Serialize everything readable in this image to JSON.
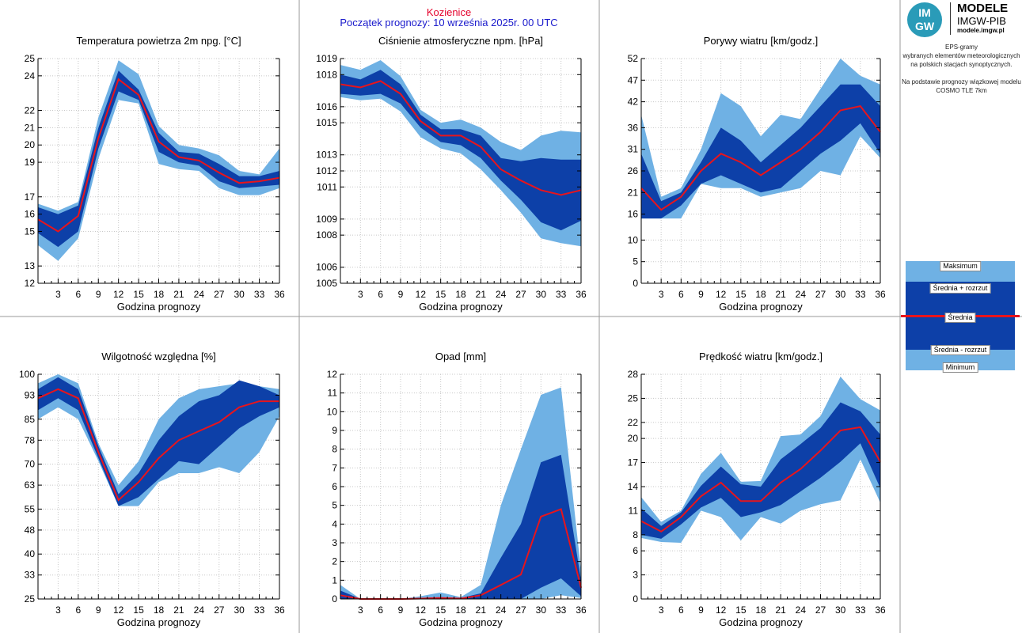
{
  "header": {
    "station": "Kozienice",
    "forecast_start": "Początek prognozy: 10 września 2025r. 00 UTC"
  },
  "logo": {
    "badge_top": "IM",
    "badge_bottom": "GW",
    "line1": "MODELE",
    "line2": "IMGW-PIB",
    "line3": "modele.imgw.pl"
  },
  "info": {
    "line1": "EPS-gramy",
    "line2": "wybranych elementów meteorologicznych",
    "line3": "na polskich stacjach  synoptycznych.",
    "line4": "Na podstawie prognozy wiązkowej modelu",
    "line5": "COSMO TLE 7km"
  },
  "legend": {
    "max": "Maksimum",
    "mean_plus": "Średnia + rozrzut",
    "mean": "Średnia",
    "mean_minus": "Średnia - rozrzut",
    "min": "Minimum"
  },
  "colors": {
    "outer_band": "#6fb1e4",
    "inner_band": "#0d40a8",
    "mean_line": "#e8141c",
    "station": "#e4002b",
    "start": "#1a1acc"
  },
  "chart_data": [
    {
      "type": "area",
      "title": "Temperatura powietrza 2m npg. [°C]",
      "xlabel": "Godzina prognozy",
      "x": [
        0,
        3,
        6,
        9,
        12,
        15,
        18,
        21,
        24,
        27,
        30,
        33,
        36
      ],
      "xticks": [
        "3",
        "6",
        "9",
        "12",
        "15",
        "18",
        "21",
        "24",
        "27",
        "30",
        "33",
        "36"
      ],
      "ylim": [
        12,
        25
      ],
      "yticks": [
        "12",
        "13",
        "15",
        "16",
        "17",
        "19",
        "20",
        "21",
        "22",
        "24",
        "25"
      ],
      "series": [
        {
          "name": "Maksimum",
          "values": [
            16.6,
            16.2,
            16.7,
            21.6,
            24.9,
            24.1,
            21.1,
            20.0,
            19.8,
            19.4,
            18.5,
            18.3,
            19.8
          ]
        },
        {
          "name": "Średnia + rozrzut",
          "values": [
            16.4,
            16.0,
            16.5,
            21.0,
            24.3,
            23.2,
            20.7,
            19.6,
            19.5,
            18.9,
            18.2,
            18.2,
            18.5
          ]
        },
        {
          "name": "Średnia",
          "values": [
            15.7,
            15.0,
            15.9,
            20.4,
            23.8,
            22.9,
            20.2,
            19.3,
            19.1,
            18.4,
            17.8,
            17.9,
            18.1
          ]
        },
        {
          "name": "Średnia - rozrzut",
          "values": [
            14.9,
            14.1,
            15.0,
            19.8,
            23.1,
            22.6,
            19.6,
            19.0,
            18.8,
            17.9,
            17.5,
            17.6,
            17.7
          ]
        },
        {
          "name": "Minimum",
          "values": [
            14.2,
            13.3,
            14.6,
            19.2,
            22.6,
            22.4,
            18.9,
            18.6,
            18.5,
            17.5,
            17.1,
            17.1,
            17.5
          ]
        }
      ]
    },
    {
      "type": "area",
      "title": "Ciśnienie atmosferyczne npm. [hPa]",
      "xlabel": "Godzina prognozy",
      "x": [
        0,
        3,
        6,
        9,
        12,
        15,
        18,
        21,
        24,
        27,
        30,
        33,
        36
      ],
      "xticks": [
        "3",
        "6",
        "9",
        "12",
        "15",
        "18",
        "21",
        "24",
        "27",
        "30",
        "33",
        "36"
      ],
      "ylim": [
        1005,
        1019
      ],
      "yticks": [
        "1005",
        "1006",
        "1008",
        "1009",
        "1011",
        "1012",
        "1013",
        "1015",
        "1016",
        "1018",
        "1019"
      ],
      "series": [
        {
          "name": "Maksimum",
          "values": [
            1018.6,
            1018.3,
            1018.9,
            1017.9,
            1015.8,
            1015.0,
            1015.2,
            1014.7,
            1013.8,
            1013.3,
            1014.2,
            1014.5,
            1014.4
          ]
        },
        {
          "name": "Średnia + rozrzut",
          "values": [
            1018.0,
            1017.7,
            1018.3,
            1017.4,
            1015.5,
            1014.6,
            1014.6,
            1014.2,
            1012.8,
            1012.6,
            1012.8,
            1012.7,
            1012.7
          ]
        },
        {
          "name": "Średnia",
          "values": [
            1017.4,
            1017.2,
            1017.6,
            1016.8,
            1015.1,
            1014.2,
            1014.2,
            1013.5,
            1012.1,
            1011.4,
            1010.8,
            1010.5,
            1010.8
          ]
        },
        {
          "name": "Średnia - rozrzut",
          "values": [
            1016.8,
            1016.7,
            1016.8,
            1016.2,
            1014.7,
            1013.8,
            1013.6,
            1012.8,
            1011.4,
            1010.2,
            1008.8,
            1008.3,
            1008.9
          ]
        },
        {
          "name": "Minimum",
          "values": [
            1016.6,
            1016.4,
            1016.5,
            1015.7,
            1014.1,
            1013.4,
            1013.1,
            1012.1,
            1010.8,
            1009.4,
            1007.8,
            1007.5,
            1007.3
          ]
        }
      ]
    },
    {
      "type": "area",
      "title": "Porywy wiatru [km/godz.]",
      "xlabel": "Godzina prognozy",
      "x": [
        0,
        3,
        6,
        9,
        12,
        15,
        18,
        21,
        24,
        27,
        30,
        33,
        36
      ],
      "xticks": [
        "3",
        "6",
        "9",
        "12",
        "15",
        "18",
        "21",
        "24",
        "27",
        "30",
        "33",
        "36"
      ],
      "ylim": [
        0,
        52
      ],
      "yticks": [
        "0",
        "5",
        "10",
        "16",
        "21",
        "26",
        "31",
        "36",
        "42",
        "47",
        "52"
      ],
      "series": [
        {
          "name": "Maksimum",
          "values": [
            39,
            20,
            22,
            31,
            44,
            41,
            34,
            39,
            38,
            45,
            52,
            48,
            46
          ]
        },
        {
          "name": "Średnia + rozrzut",
          "values": [
            30,
            19,
            21,
            28,
            36,
            33,
            28,
            32,
            36,
            41,
            46,
            46,
            41
          ]
        },
        {
          "name": "Średnia",
          "values": [
            22,
            17,
            20,
            26,
            30,
            28,
            25,
            28,
            31,
            35,
            40,
            41,
            35
          ]
        },
        {
          "name": "Średnia - rozrzut",
          "values": [
            15,
            15,
            18,
            23,
            25,
            23,
            21,
            22,
            26,
            30,
            33,
            37,
            30
          ]
        },
        {
          "name": "Minimum",
          "values": [
            15,
            15,
            15,
            23,
            22,
            22,
            20,
            21,
            22,
            26,
            25,
            34,
            29
          ]
        }
      ]
    },
    {
      "type": "area",
      "title": "Wilgotność względna [%]",
      "xlabel": "Godzina prognozy",
      "x": [
        0,
        3,
        6,
        9,
        12,
        15,
        18,
        21,
        24,
        27,
        30,
        33,
        36
      ],
      "xticks": [
        "3",
        "6",
        "9",
        "12",
        "15",
        "18",
        "21",
        "24",
        "27",
        "30",
        "33",
        "36"
      ],
      "ylim": [
        25,
        100
      ],
      "yticks": [
        "25",
        "33",
        "40",
        "48",
        "55",
        "63",
        "70",
        "78",
        "85",
        "93",
        "100"
      ],
      "series": [
        {
          "name": "Maksimum",
          "values": [
            97,
            100,
            97,
            77,
            63,
            71,
            85,
            92,
            95,
            96,
            97,
            96,
            95
          ]
        },
        {
          "name": "Średnia + rozrzut",
          "values": [
            95,
            99,
            95,
            76,
            60,
            67,
            78,
            86,
            91,
            93,
            98,
            96,
            93
          ]
        },
        {
          "name": "Średnia",
          "values": [
            92,
            95,
            92,
            74,
            58,
            64,
            72,
            78,
            81,
            84,
            89,
            91,
            91
          ]
        },
        {
          "name": "Średnia - rozrzut",
          "values": [
            88,
            92,
            88,
            72,
            56,
            59,
            65,
            71,
            70,
            76,
            82,
            86,
            89
          ]
        },
        {
          "name": "Minimum",
          "values": [
            85,
            89,
            85,
            71,
            56,
            56,
            64,
            67,
            67,
            69,
            67,
            74,
            86
          ]
        }
      ]
    },
    {
      "type": "area",
      "title": "Opad [mm]",
      "xlabel": "Godzina prognozy",
      "x": [
        0,
        3,
        6,
        9,
        12,
        15,
        18,
        21,
        24,
        27,
        30,
        33,
        36
      ],
      "xticks": [
        "3",
        "6",
        "9",
        "12",
        "15",
        "18",
        "21",
        "24",
        "27",
        "30",
        "33",
        "36"
      ],
      "ylim": [
        0,
        12
      ],
      "yticks": [
        "0",
        "1",
        "2",
        "3",
        "4",
        "5",
        "6",
        "7",
        "8",
        "9",
        "10",
        "11",
        "12"
      ],
      "series": [
        {
          "name": "Maksimum",
          "values": [
            0.75,
            0.0,
            0.0,
            0.0,
            0.15,
            0.35,
            0.1,
            0.75,
            5.0,
            8.0,
            10.9,
            11.3,
            1.5
          ]
        },
        {
          "name": "Średnia + rozrzut",
          "values": [
            0.45,
            0.0,
            0.0,
            0.0,
            0.05,
            0.1,
            0.05,
            0.3,
            2.2,
            4.0,
            7.3,
            7.7,
            1.0
          ]
        },
        {
          "name": "Średnia",
          "values": [
            0.2,
            0.0,
            0.0,
            0.0,
            0.02,
            0.05,
            0.02,
            0.2,
            0.75,
            1.3,
            4.4,
            4.8,
            0.6
          ]
        },
        {
          "name": "Średnia - rozrzut",
          "values": [
            0.0,
            0.0,
            0.0,
            0.0,
            0.0,
            0.0,
            0.0,
            0.0,
            0.0,
            0.0,
            0.6,
            1.1,
            0.15
          ]
        },
        {
          "name": "Minimum",
          "values": [
            0.0,
            0.0,
            0.0,
            0.0,
            0.0,
            0.0,
            0.0,
            0.0,
            0.0,
            0.0,
            0.0,
            0.2,
            0.05
          ]
        }
      ]
    },
    {
      "type": "area",
      "title": "Prędkość wiatru [km/godz.]",
      "xlabel": "Godzina prognozy",
      "x": [
        0,
        3,
        6,
        9,
        12,
        15,
        18,
        21,
        24,
        27,
        30,
        33,
        36
      ],
      "xticks": [
        "3",
        "6",
        "9",
        "12",
        "15",
        "18",
        "21",
        "24",
        "27",
        "30",
        "33",
        "36"
      ],
      "ylim": [
        0,
        28
      ],
      "yticks": [
        "0",
        "3",
        "6",
        "8",
        "11",
        "14",
        "17",
        "20",
        "22",
        "25",
        "28"
      ],
      "series": [
        {
          "name": "Maksimum",
          "values": [
            12.7,
            9.6,
            11.0,
            15.6,
            18.2,
            14.6,
            14.7,
            20.3,
            20.5,
            22.8,
            27.7,
            24.9,
            23.5
          ]
        },
        {
          "name": "Średnia + rozrzut",
          "values": [
            11.3,
            9.1,
            10.8,
            14.1,
            16.5,
            14.3,
            14.0,
            17.4,
            19.3,
            21.3,
            24.5,
            23.4,
            20.5
          ]
        },
        {
          "name": "Średnia",
          "values": [
            9.7,
            8.4,
            10.2,
            12.8,
            14.5,
            12.2,
            12.2,
            14.5,
            16.2,
            18.5,
            21.0,
            21.4,
            17.1
          ]
        },
        {
          "name": "Średnia - rozrzut",
          "values": [
            8.0,
            7.5,
            9.3,
            11.4,
            12.6,
            10.2,
            10.8,
            11.7,
            13.4,
            15.1,
            17.1,
            19.4,
            13.8
          ]
        },
        {
          "name": "Minimum",
          "values": [
            7.6,
            7.1,
            7.0,
            11.0,
            10.2,
            7.3,
            10.2,
            9.4,
            11.0,
            11.8,
            12.3,
            17.4,
            12.0
          ]
        }
      ]
    }
  ]
}
